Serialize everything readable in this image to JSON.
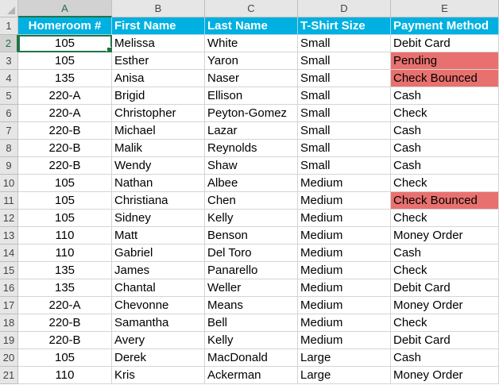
{
  "colors": {
    "header_fill": "#00b0e0",
    "highlight_fill": "#e8716f",
    "selection_accent": "#217346"
  },
  "columns": [
    "A",
    "B",
    "C",
    "D",
    "E"
  ],
  "header_row_number": "1",
  "header": [
    "Homeroom #",
    "First Name",
    "Last Name",
    "T-Shirt Size",
    "Payment Method"
  ],
  "selected_cell": "A2",
  "rows": [
    {
      "num": "2",
      "cells": [
        "105",
        "Melissa",
        "White",
        "Small",
        "Debit Card"
      ],
      "highlight": false
    },
    {
      "num": "3",
      "cells": [
        "105",
        "Esther",
        "Yaron",
        "Small",
        "Pending"
      ],
      "highlight": true
    },
    {
      "num": "4",
      "cells": [
        "135",
        "Anisa",
        "Naser",
        "Small",
        "Check Bounced"
      ],
      "highlight": true
    },
    {
      "num": "5",
      "cells": [
        "220-A",
        "Brigid",
        "Ellison",
        "Small",
        "Cash"
      ],
      "highlight": false
    },
    {
      "num": "6",
      "cells": [
        "220-A",
        "Christopher",
        "Peyton-Gomez",
        "Small",
        "Check"
      ],
      "highlight": false
    },
    {
      "num": "7",
      "cells": [
        "220-B",
        "Michael",
        "Lazar",
        "Small",
        "Cash"
      ],
      "highlight": false
    },
    {
      "num": "8",
      "cells": [
        "220-B",
        "Malik",
        "Reynolds",
        "Small",
        "Cash"
      ],
      "highlight": false
    },
    {
      "num": "9",
      "cells": [
        "220-B",
        "Wendy",
        "Shaw",
        "Small",
        "Cash"
      ],
      "highlight": false
    },
    {
      "num": "10",
      "cells": [
        "105",
        "Nathan",
        "Albee",
        "Medium",
        "Check"
      ],
      "highlight": false
    },
    {
      "num": "11",
      "cells": [
        "105",
        "Christiana",
        "Chen",
        "Medium",
        "Check Bounced"
      ],
      "highlight": true
    },
    {
      "num": "12",
      "cells": [
        "105",
        "Sidney",
        "Kelly",
        "Medium",
        "Check"
      ],
      "highlight": false
    },
    {
      "num": "13",
      "cells": [
        "110",
        "Matt",
        "Benson",
        "Medium",
        "Money Order"
      ],
      "highlight": false
    },
    {
      "num": "14",
      "cells": [
        "110",
        "Gabriel",
        "Del Toro",
        "Medium",
        "Cash"
      ],
      "highlight": false
    },
    {
      "num": "15",
      "cells": [
        "135",
        "James",
        "Panarello",
        "Medium",
        "Check"
      ],
      "highlight": false
    },
    {
      "num": "16",
      "cells": [
        "135",
        "Chantal",
        "Weller",
        "Medium",
        "Debit Card"
      ],
      "highlight": false
    },
    {
      "num": "17",
      "cells": [
        "220-A",
        "Chevonne",
        "Means",
        "Medium",
        "Money Order"
      ],
      "highlight": false
    },
    {
      "num": "18",
      "cells": [
        "220-B",
        "Samantha",
        "Bell",
        "Medium",
        "Check"
      ],
      "highlight": false
    },
    {
      "num": "19",
      "cells": [
        "220-B",
        "Avery",
        "Kelly",
        "Medium",
        "Debit Card"
      ],
      "highlight": false
    },
    {
      "num": "20",
      "cells": [
        "105",
        "Derek",
        "MacDonald",
        "Large",
        "Cash"
      ],
      "highlight": false
    },
    {
      "num": "21",
      "cells": [
        "110",
        "Kris",
        "Ackerman",
        "Large",
        "Money Order"
      ],
      "highlight": false
    }
  ]
}
